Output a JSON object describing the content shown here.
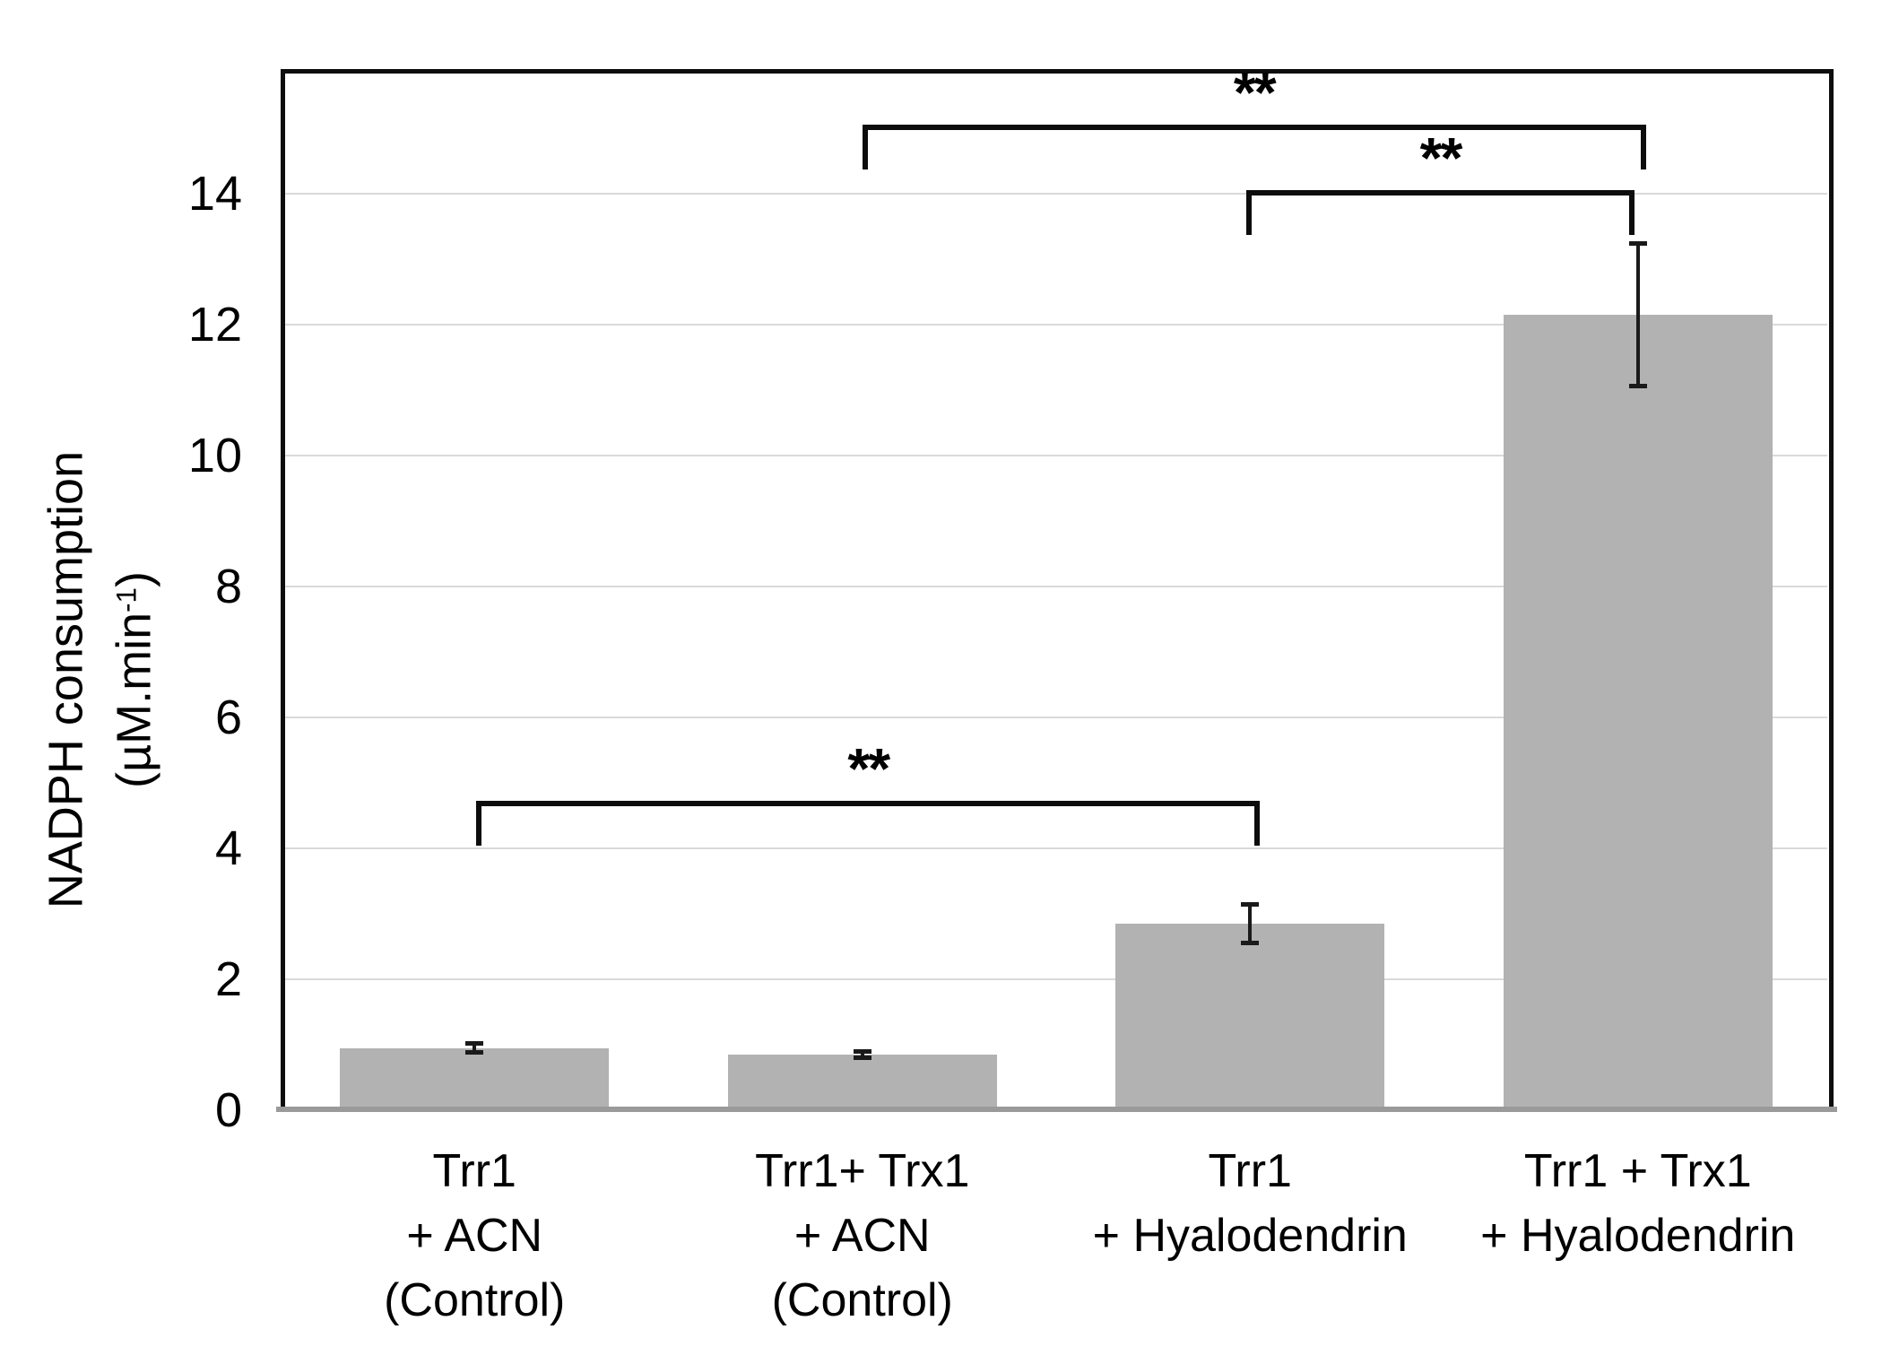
{
  "figure": {
    "background": "#ffffff",
    "text_color": "#000000"
  },
  "y_axis": {
    "label_line1": "NADPH consumption",
    "unit_prefix": "(µM.min",
    "unit_sup": "-1",
    "unit_suffix": ")",
    "ticks": [
      0,
      2,
      4,
      6,
      8,
      10,
      12,
      14
    ]
  },
  "chart_data": {
    "type": "bar",
    "title": "",
    "xlabel": "",
    "ylabel": "NADPH consumption (µM.min-1)",
    "ylim": [
      0,
      15.9
    ],
    "grid": "horizontal-light",
    "legend": "none",
    "bar_color": "#b2b2b2",
    "categories": [
      "Trr1 + ACN (Control)",
      "Trr1+ Trx1 + ACN (Control)",
      "Trr1 + Hyalodendrin",
      "Trr1 + Trx1 + Hyalodendrin"
    ],
    "category_label_lines": [
      [
        "Trr1",
        "+ ACN",
        "(Control)"
      ],
      [
        "Trr1+ Trx1",
        "+ ACN",
        "(Control)"
      ],
      [
        "Trr1",
        "+ Hyalodendrin"
      ],
      [
        "Trr1 + Trx1",
        "+ Hyalodendrin"
      ]
    ],
    "values": [
      0.95,
      0.85,
      2.85,
      12.15
    ],
    "error_bars": [
      0.08,
      0.05,
      0.3,
      1.1
    ],
    "significance_brackets": [
      {
        "label": "**",
        "from_bar": 1,
        "to_bar": 3,
        "y_value": 15.05
      },
      {
        "label": "**",
        "from_bar": 2,
        "to_bar": 3,
        "y_value": 14.05
      },
      {
        "label": "**",
        "from_bar": 0,
        "to_bar": 2,
        "y_value": 4.73
      }
    ]
  }
}
